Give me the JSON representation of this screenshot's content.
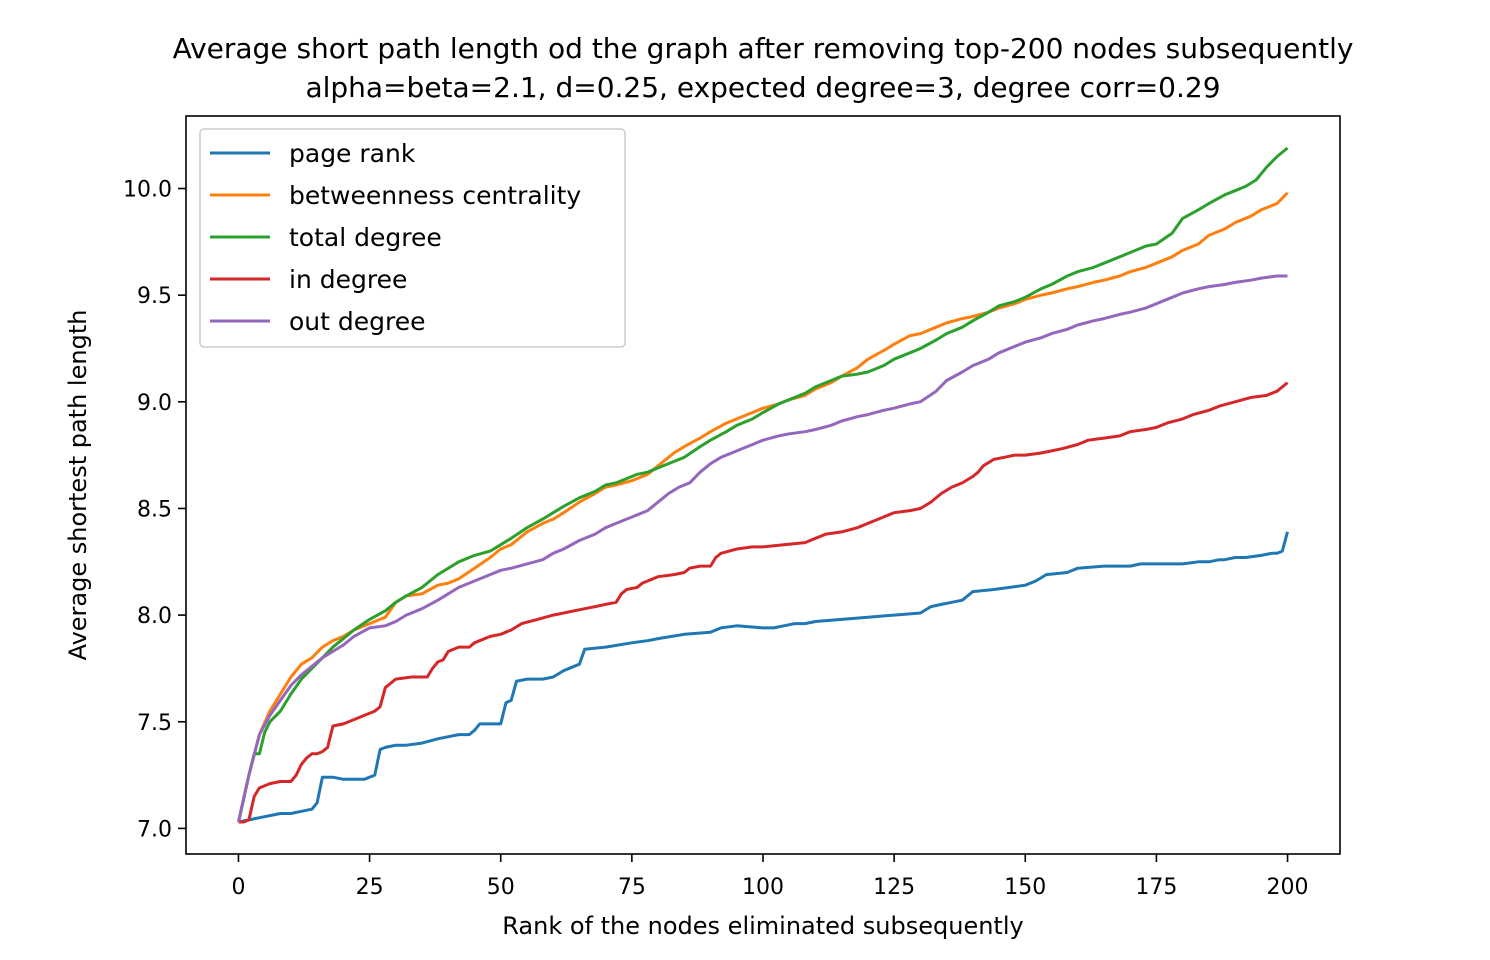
{
  "chart_data": {
    "type": "line",
    "title": "Average short path length od the graph after removing top-200 nodes subsequently",
    "subtitle": "alpha=beta=2.1, d=0.25, expected degree=3, degree corr=0.29",
    "xlabel": "Rank of the nodes eliminated subsequently",
    "ylabel": "Average shortest path length",
    "xlim": [
      -10,
      210
    ],
    "ylim": [
      6.88,
      10.34
    ],
    "xticks": [
      0,
      25,
      50,
      75,
      100,
      125,
      150,
      175,
      200
    ],
    "xtick_labels": [
      "0",
      "25",
      "50",
      "75",
      "100",
      "125",
      "150",
      "175",
      "200"
    ],
    "yticks": [
      7.0,
      7.5,
      8.0,
      8.5,
      9.0,
      9.5,
      10.0
    ],
    "ytick_labels": [
      "7.0",
      "7.5",
      "8.0",
      "8.5",
      "9.0",
      "9.5",
      "10.0"
    ],
    "grid": false,
    "legend_position": "upper-left",
    "series": [
      {
        "name": "page rank",
        "color": "#1f77b4",
        "x": [
          0,
          2,
          4,
          6,
          8,
          10,
          12,
          14,
          15,
          16,
          18,
          20,
          22,
          24,
          26,
          27,
          28,
          30,
          32,
          35,
          38,
          40,
          42,
          44,
          45,
          46,
          50,
          51,
          52,
          53,
          55,
          58,
          60,
          62,
          64,
          65,
          66,
          70,
          75,
          78,
          80,
          85,
          90,
          92,
          95,
          100,
          102,
          104,
          106,
          108,
          110,
          115,
          120,
          125,
          130,
          132,
          134,
          136,
          138,
          140,
          144,
          150,
          152,
          154,
          158,
          160,
          165,
          170,
          172,
          175,
          180,
          183,
          185,
          187,
          188,
          190,
          192,
          195,
          197,
          198,
          199,
          200
        ],
        "y": [
          7.03,
          7.04,
          7.05,
          7.06,
          7.07,
          7.07,
          7.08,
          7.09,
          7.12,
          7.24,
          7.24,
          7.23,
          7.23,
          7.23,
          7.25,
          7.37,
          7.38,
          7.39,
          7.39,
          7.4,
          7.42,
          7.43,
          7.44,
          7.44,
          7.46,
          7.49,
          7.49,
          7.59,
          7.6,
          7.69,
          7.7,
          7.7,
          7.71,
          7.74,
          7.76,
          7.77,
          7.84,
          7.85,
          7.87,
          7.88,
          7.89,
          7.91,
          7.92,
          7.94,
          7.95,
          7.94,
          7.94,
          7.95,
          7.96,
          7.96,
          7.97,
          7.98,
          7.99,
          8.0,
          8.01,
          8.04,
          8.05,
          8.06,
          8.07,
          8.11,
          8.12,
          8.14,
          8.16,
          8.19,
          8.2,
          8.22,
          8.23,
          8.23,
          8.24,
          8.24,
          8.24,
          8.25,
          8.25,
          8.26,
          8.26,
          8.27,
          8.27,
          8.28,
          8.29,
          8.29,
          8.3,
          8.39
        ]
      },
      {
        "name": "betweenness centrality",
        "color": "#ff7f0e",
        "x": [
          0,
          2,
          4,
          6,
          8,
          10,
          12,
          14,
          16,
          18,
          20,
          22,
          25,
          28,
          30,
          32,
          35,
          38,
          40,
          42,
          45,
          48,
          50,
          52,
          55,
          58,
          60,
          62,
          65,
          68,
          70,
          72,
          75,
          78,
          80,
          83,
          85,
          88,
          90,
          93,
          95,
          98,
          100,
          103,
          105,
          108,
          110,
          113,
          115,
          118,
          120,
          123,
          125,
          128,
          130,
          133,
          135,
          138,
          140,
          143,
          145,
          148,
          150,
          153,
          155,
          158,
          160,
          163,
          165,
          168,
          170,
          173,
          175,
          178,
          180,
          183,
          185,
          188,
          190,
          193,
          195,
          198,
          200
        ],
        "y": [
          7.03,
          7.25,
          7.44,
          7.55,
          7.63,
          7.71,
          7.77,
          7.8,
          7.85,
          7.88,
          7.9,
          7.93,
          7.96,
          7.99,
          8.06,
          8.09,
          8.1,
          8.14,
          8.15,
          8.17,
          8.22,
          8.27,
          8.31,
          8.33,
          8.39,
          8.43,
          8.45,
          8.48,
          8.53,
          8.57,
          8.6,
          8.61,
          8.63,
          8.66,
          8.7,
          8.76,
          8.79,
          8.83,
          8.86,
          8.9,
          8.92,
          8.95,
          8.97,
          8.99,
          9.01,
          9.03,
          9.06,
          9.09,
          9.12,
          9.16,
          9.2,
          9.24,
          9.27,
          9.31,
          9.32,
          9.35,
          9.37,
          9.39,
          9.4,
          9.42,
          9.44,
          9.46,
          9.48,
          9.5,
          9.51,
          9.53,
          9.54,
          9.56,
          9.57,
          9.59,
          9.61,
          9.63,
          9.65,
          9.68,
          9.71,
          9.74,
          9.78,
          9.81,
          9.84,
          9.87,
          9.9,
          9.93,
          9.98
        ]
      },
      {
        "name": "total degree",
        "color": "#2ca02c",
        "x": [
          0,
          2,
          3,
          4,
          5,
          6,
          8,
          10,
          12,
          14,
          16,
          18,
          20,
          22,
          25,
          28,
          30,
          32,
          35,
          38,
          40,
          42,
          45,
          48,
          50,
          52,
          55,
          58,
          60,
          62,
          65,
          68,
          70,
          72,
          74,
          76,
          78,
          80,
          83,
          85,
          88,
          90,
          93,
          95,
          98,
          100,
          103,
          105,
          108,
          110,
          113,
          115,
          118,
          120,
          123,
          125,
          128,
          130,
          133,
          135,
          138,
          140,
          143,
          145,
          148,
          150,
          153,
          155,
          158,
          160,
          163,
          165,
          168,
          170,
          173,
          175,
          178,
          180,
          183,
          185,
          188,
          190,
          192,
          194,
          196,
          198,
          200
        ],
        "y": [
          7.03,
          7.25,
          7.35,
          7.35,
          7.45,
          7.5,
          7.55,
          7.63,
          7.7,
          7.75,
          7.8,
          7.85,
          7.89,
          7.93,
          7.98,
          8.02,
          8.06,
          8.09,
          8.13,
          8.19,
          8.22,
          8.25,
          8.28,
          8.3,
          8.33,
          8.36,
          8.41,
          8.45,
          8.48,
          8.51,
          8.55,
          8.58,
          8.61,
          8.62,
          8.64,
          8.66,
          8.67,
          8.69,
          8.72,
          8.74,
          8.79,
          8.82,
          8.86,
          8.89,
          8.92,
          8.95,
          8.99,
          9.01,
          9.04,
          9.07,
          9.1,
          9.12,
          9.13,
          9.14,
          9.17,
          9.2,
          9.23,
          9.25,
          9.29,
          9.32,
          9.35,
          9.38,
          9.42,
          9.45,
          9.47,
          9.49,
          9.53,
          9.55,
          9.59,
          9.61,
          9.63,
          9.65,
          9.68,
          9.7,
          9.73,
          9.74,
          9.79,
          9.86,
          9.9,
          9.93,
          9.97,
          9.99,
          10.01,
          10.04,
          10.1,
          10.15,
          10.19
        ]
      },
      {
        "name": "in degree",
        "color": "#d62728",
        "x": [
          0,
          1,
          2,
          3,
          4,
          6,
          8,
          10,
          11,
          12,
          13,
          14,
          15,
          16,
          17,
          18,
          20,
          22,
          24,
          26,
          27,
          28,
          30,
          33,
          36,
          37,
          38,
          39,
          40,
          42,
          44,
          45,
          46,
          48,
          50,
          52,
          54,
          57,
          60,
          62,
          64,
          66,
          68,
          70,
          72,
          73,
          74,
          76,
          77,
          78,
          80,
          83,
          85,
          86,
          88,
          90,
          91,
          92,
          95,
          98,
          100,
          104,
          108,
          110,
          112,
          115,
          118,
          120,
          123,
          125,
          128,
          130,
          132,
          134,
          136,
          138,
          140,
          141,
          142,
          144,
          146,
          148,
          150,
          153,
          155,
          157,
          160,
          162,
          165,
          168,
          170,
          173,
          175,
          177,
          180,
          182,
          185,
          187,
          190,
          193,
          196,
          198,
          200
        ],
        "y": [
          7.03,
          7.03,
          7.04,
          7.15,
          7.19,
          7.21,
          7.22,
          7.22,
          7.25,
          7.3,
          7.33,
          7.35,
          7.35,
          7.36,
          7.38,
          7.48,
          7.49,
          7.51,
          7.53,
          7.55,
          7.57,
          7.66,
          7.7,
          7.71,
          7.71,
          7.75,
          7.78,
          7.79,
          7.83,
          7.85,
          7.85,
          7.87,
          7.88,
          7.9,
          7.91,
          7.93,
          7.96,
          7.98,
          8.0,
          8.01,
          8.02,
          8.03,
          8.04,
          8.05,
          8.06,
          8.1,
          8.12,
          8.13,
          8.15,
          8.16,
          8.18,
          8.19,
          8.2,
          8.22,
          8.23,
          8.23,
          8.27,
          8.29,
          8.31,
          8.32,
          8.32,
          8.33,
          8.34,
          8.36,
          8.38,
          8.39,
          8.41,
          8.43,
          8.46,
          8.48,
          8.49,
          8.5,
          8.53,
          8.57,
          8.6,
          8.62,
          8.65,
          8.67,
          8.7,
          8.73,
          8.74,
          8.75,
          8.75,
          8.76,
          8.77,
          8.78,
          8.8,
          8.82,
          8.83,
          8.84,
          8.86,
          8.87,
          8.88,
          8.9,
          8.92,
          8.94,
          8.96,
          8.98,
          9.0,
          9.02,
          9.03,
          9.05,
          9.09
        ]
      },
      {
        "name": "out degree",
        "color": "#9467bd",
        "x": [
          0,
          2,
          4,
          6,
          8,
          10,
          12,
          14,
          16,
          18,
          20,
          22,
          25,
          28,
          30,
          32,
          35,
          38,
          40,
          42,
          45,
          48,
          50,
          52,
          55,
          58,
          60,
          62,
          65,
          68,
          70,
          72,
          75,
          78,
          80,
          82,
          84,
          86,
          88,
          90,
          92,
          95,
          98,
          100,
          103,
          105,
          108,
          110,
          113,
          115,
          118,
          120,
          123,
          125,
          128,
          130,
          133,
          135,
          138,
          140,
          143,
          145,
          148,
          150,
          153,
          155,
          158,
          160,
          163,
          165,
          168,
          170,
          173,
          175,
          178,
          180,
          183,
          185,
          188,
          190,
          193,
          195,
          198,
          200
        ],
        "y": [
          7.03,
          7.25,
          7.44,
          7.53,
          7.6,
          7.67,
          7.72,
          7.76,
          7.8,
          7.83,
          7.86,
          7.9,
          7.94,
          7.95,
          7.97,
          8.0,
          8.03,
          8.07,
          8.1,
          8.13,
          8.16,
          8.19,
          8.21,
          8.22,
          8.24,
          8.26,
          8.29,
          8.31,
          8.35,
          8.38,
          8.41,
          8.43,
          8.46,
          8.49,
          8.53,
          8.57,
          8.6,
          8.62,
          8.67,
          8.71,
          8.74,
          8.77,
          8.8,
          8.82,
          8.84,
          8.85,
          8.86,
          8.87,
          8.89,
          8.91,
          8.93,
          8.94,
          8.96,
          8.97,
          8.99,
          9.0,
          9.05,
          9.1,
          9.14,
          9.17,
          9.2,
          9.23,
          9.26,
          9.28,
          9.3,
          9.32,
          9.34,
          9.36,
          9.38,
          9.39,
          9.41,
          9.42,
          9.44,
          9.46,
          9.49,
          9.51,
          9.53,
          9.54,
          9.55,
          9.56,
          9.57,
          9.58,
          9.59,
          9.59
        ]
      }
    ]
  }
}
